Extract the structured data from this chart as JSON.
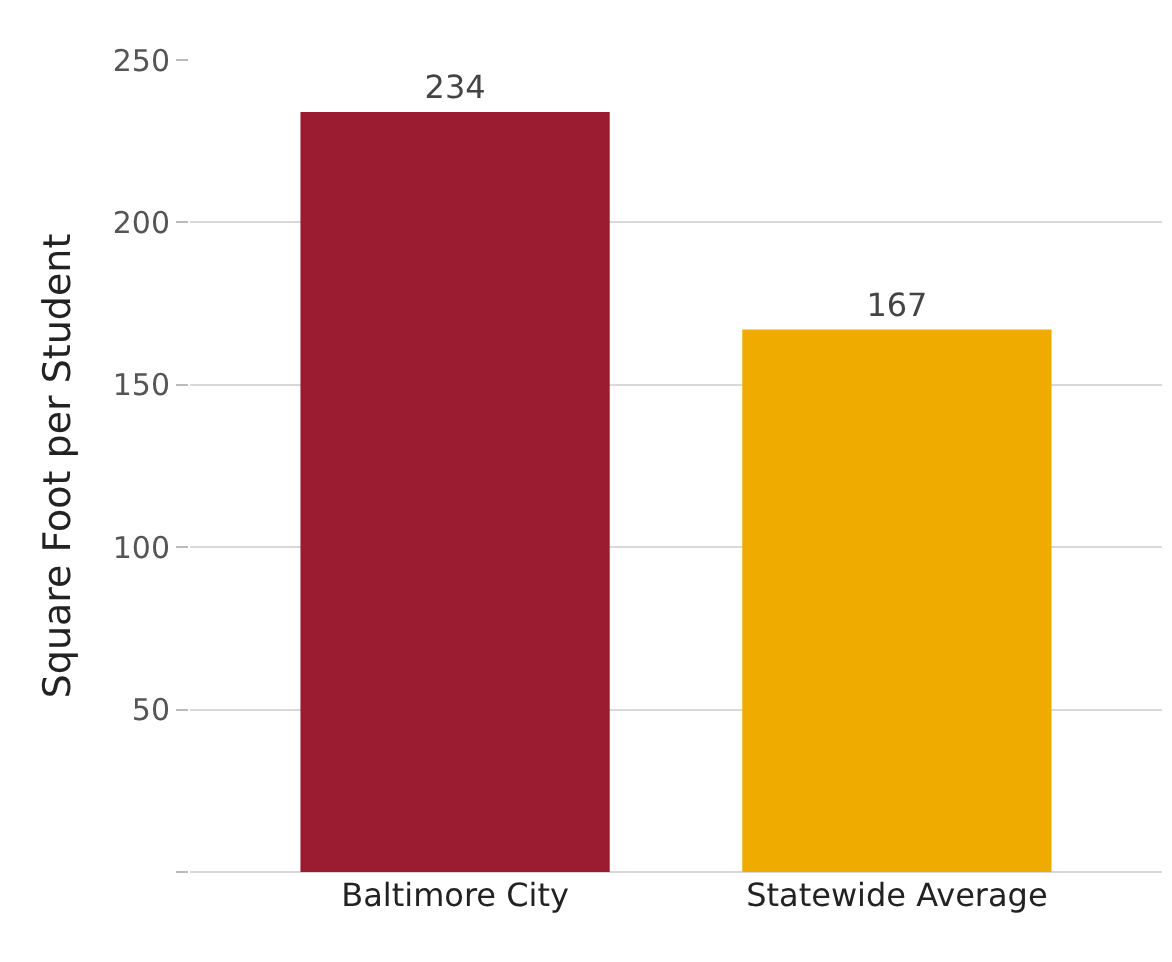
{
  "chart_data": {
    "type": "bar",
    "ylabel": "Square Foot per Student",
    "categories": [
      "Baltimore City",
      "Statewide Average"
    ],
    "values": [
      234,
      167
    ],
    "colors": [
      "#9b1b30",
      "#f0ab00"
    ],
    "ylim": [
      0,
      250
    ],
    "yticks": [
      {
        "value": 0,
        "label": null
      },
      50,
      100,
      150,
      200,
      250
    ],
    "grid": "y",
    "data_labels": true,
    "legend": false
  }
}
